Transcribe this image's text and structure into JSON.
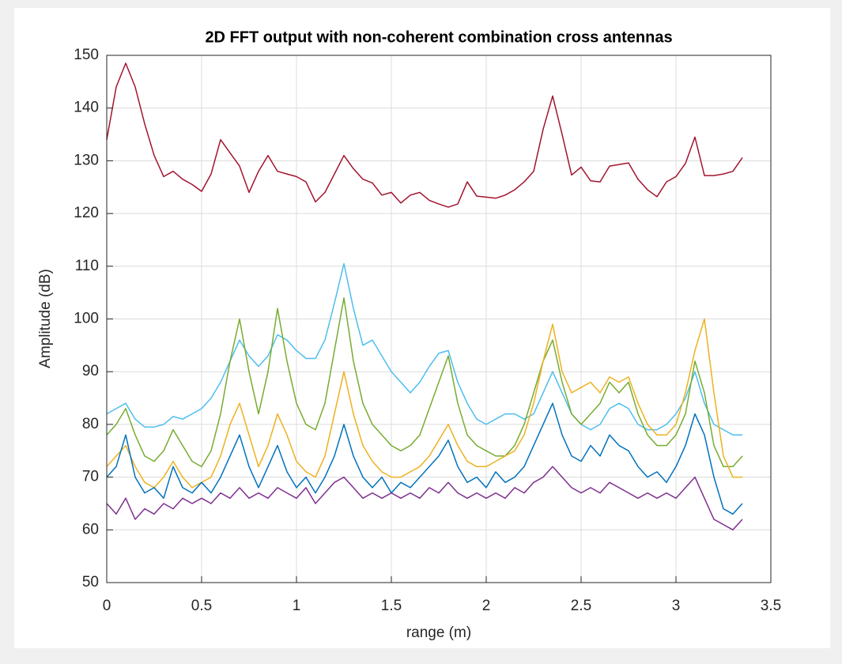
{
  "chart_data": {
    "type": "line",
    "title": "2D FFT output with non-coherent combination cross antennas",
    "xlabel": "range (m)",
    "ylabel": "Amplitude (dB)",
    "xlim": [
      0,
      3.5
    ],
    "xticks": [
      0,
      0.5,
      1,
      1.5,
      2,
      2.5,
      3,
      3.5
    ],
    "ylim": [
      50,
      150
    ],
    "yticks": [
      50,
      60,
      70,
      80,
      90,
      100,
      110,
      120,
      130,
      140,
      150
    ],
    "grid": true,
    "x": [
      0,
      0.05,
      0.1,
      0.15,
      0.2,
      0.25,
      0.3,
      0.35,
      0.4,
      0.45,
      0.5,
      0.55,
      0.6,
      0.65,
      0.7,
      0.75,
      0.8,
      0.85,
      0.9,
      0.95,
      1,
      1.05,
      1.1,
      1.15,
      1.2,
      1.25,
      1.3,
      1.35,
      1.4,
      1.45,
      1.5,
      1.55,
      1.6,
      1.65,
      1.7,
      1.75,
      1.8,
      1.85,
      1.9,
      1.95,
      2,
      2.05,
      2.1,
      2.15,
      2.2,
      2.25,
      2.3,
      2.35,
      2.4,
      2.45,
      2.5,
      2.55,
      2.6,
      2.65,
      2.7,
      2.75,
      2.8,
      2.85,
      2.9,
      2.95,
      3,
      3.05,
      3.1,
      3.15,
      3.2,
      3.25,
      3.3,
      3.35
    ],
    "series": [
      {
        "color": "#4dbeee",
        "values": [
          82,
          83,
          84,
          81,
          79.5,
          79.5,
          80,
          81.5,
          81,
          82,
          83,
          85,
          88,
          92,
          96,
          93,
          91,
          93,
          97,
          96,
          94,
          92.5,
          92.5,
          96,
          103,
          110.5,
          102,
          95,
          96,
          93,
          90,
          88,
          86,
          88,
          91,
          93.5,
          94,
          88,
          84,
          81,
          80,
          81,
          82,
          82,
          81,
          82,
          86,
          90,
          86,
          82,
          80,
          79,
          80,
          83,
          84,
          83,
          80,
          79,
          79,
          80,
          82,
          85,
          90,
          84,
          80,
          79,
          78,
          78
        ]
      },
      {
        "color": "#77ac30",
        "values": [
          78,
          80,
          83,
          78,
          74,
          73,
          75,
          79,
          76,
          73,
          72,
          75,
          82,
          92,
          100,
          90,
          82,
          90,
          102,
          92,
          84,
          80,
          79,
          84,
          94,
          104,
          92,
          84,
          80,
          78,
          76,
          75,
          76,
          78,
          83,
          88,
          93,
          84,
          78,
          76,
          75,
          74,
          74,
          76,
          80,
          86,
          92,
          96,
          88,
          82,
          80,
          82,
          84,
          88,
          86,
          88,
          82,
          78,
          76,
          76,
          78,
          82,
          92,
          86,
          76,
          72,
          72,
          74
        ]
      },
      {
        "color": "#edb120",
        "values": [
          72,
          74,
          76,
          72,
          69,
          68,
          70,
          73,
          70,
          68,
          69,
          70,
          74,
          80,
          84,
          78,
          72,
          76,
          82,
          78,
          73,
          71,
          70,
          74,
          82,
          90,
          82,
          76,
          73,
          71,
          70,
          70,
          71,
          72,
          74,
          77,
          80,
          76,
          73,
          72,
          72,
          73,
          74,
          75,
          78,
          84,
          92,
          99,
          90,
          86,
          87,
          88,
          86,
          89,
          88,
          89,
          84,
          80,
          78,
          78,
          80,
          86,
          94,
          100,
          86,
          74,
          70,
          70
        ]
      },
      {
        "color": "#0072bd",
        "values": [
          70,
          72,
          78,
          70,
          67,
          68,
          66,
          72,
          68,
          67,
          69,
          67,
          70,
          74,
          78,
          72,
          68,
          72,
          76,
          71,
          68,
          70,
          67,
          70,
          74,
          80,
          74,
          70,
          68,
          70,
          67,
          69,
          68,
          70,
          72,
          74,
          77,
          72,
          69,
          70,
          68,
          71,
          69,
          70,
          72,
          76,
          80,
          84,
          78,
          74,
          73,
          76,
          74,
          78,
          76,
          75,
          72,
          70,
          71,
          69,
          72,
          76,
          82,
          78,
          70,
          64,
          63,
          65
        ]
      },
      {
        "color": "#7e2f8e",
        "values": [
          65,
          63,
          66,
          62,
          64,
          63,
          65,
          64,
          66,
          65,
          66,
          65,
          67,
          66,
          68,
          66,
          67,
          66,
          68,
          67,
          66,
          68,
          65,
          67,
          69,
          70,
          68,
          66,
          67,
          66,
          67,
          66,
          67,
          66,
          68,
          67,
          69,
          67,
          66,
          67,
          66,
          67,
          66,
          68,
          67,
          69,
          70,
          72,
          70,
          68,
          67,
          68,
          67,
          69,
          68,
          67,
          66,
          67,
          66,
          67,
          66,
          68,
          70,
          66,
          62,
          61,
          60,
          62
        ]
      },
      {
        "color": "#a2142f",
        "values": [
          134,
          144,
          148.5,
          144,
          137,
          131,
          127,
          128,
          126.5,
          125.5,
          124.2,
          127.5,
          134,
          131.5,
          129,
          124,
          128,
          131,
          128,
          127.5,
          127,
          126,
          122.2,
          124,
          127.5,
          131,
          128.5,
          126.5,
          125.8,
          123.5,
          124,
          122,
          123.5,
          124,
          122.5,
          121.8,
          121.2,
          121.8,
          126,
          123.3,
          123.1,
          122.9,
          123.5,
          124.5,
          126,
          128,
          136,
          142.3,
          135,
          127.3,
          128.8,
          126.2,
          126,
          129,
          129.3,
          129.6,
          126.5,
          124.5,
          123.2,
          126,
          127,
          129.5,
          134.5,
          127.2,
          127.2,
          127.5,
          128,
          130.6
        ]
      }
    ]
  }
}
